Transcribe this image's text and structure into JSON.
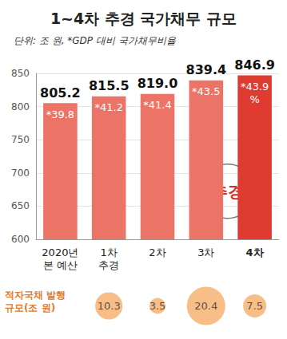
{
  "chart_data": {
    "type": "bar",
    "title": "1~4차 추경 국가채무 규모",
    "subtitle": "단위: 조 원, *GDP 대비 국가채무비율",
    "categories": [
      "2020년\n본 예산",
      "1차\n추경",
      "2차",
      "3차",
      "4차"
    ],
    "values": [
      805.2,
      815.5,
      819.0,
      839.4,
      846.9
    ],
    "value_labels": [
      "805.2",
      "815.5",
      "819.0",
      "839.4",
      "846.9"
    ],
    "colors": [
      "#ec7466",
      "#ec7466",
      "#ec7466",
      "#ec7466",
      "#e03b30"
    ],
    "data_labels": true,
    "ylim": [
      600,
      850
    ],
    "yticks": [
      600,
      650,
      700,
      750,
      800,
      850
    ],
    "grid": true,
    "gdp_ratio": {
      "values": [
        39.8,
        41.2,
        41.4,
        43.5,
        43.9
      ],
      "value_labels": [
        "*39.8",
        "*41.2",
        "*41.4",
        "*43.5",
        "*43.9\n%"
      ]
    },
    "annotation": "추경",
    "deficit_bonds": {
      "label": "적자국채 발행\n규모(조 원)",
      "values": [
        null,
        10.3,
        3.5,
        20.4,
        7.5
      ],
      "color": "#f5ae6a"
    }
  }
}
